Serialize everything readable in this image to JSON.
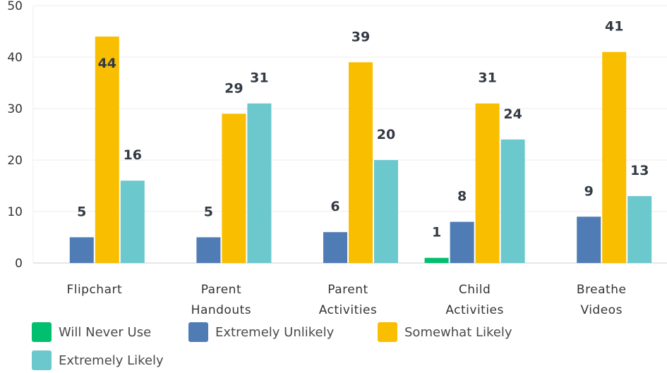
{
  "chart_data": {
    "type": "bar",
    "categories": [
      [
        "Flipchart"
      ],
      [
        "Parent",
        "Handouts"
      ],
      [
        "Parent",
        "Activities"
      ],
      [
        "Child",
        "Activities"
      ],
      [
        "Breathe",
        "Videos"
      ]
    ],
    "series": [
      {
        "name": "Will Never Use",
        "color": "#00bf6f",
        "values": [
          0,
          0,
          0,
          1,
          0
        ]
      },
      {
        "name": "Extremely Unlikely",
        "color": "#507cb6",
        "values": [
          5,
          5,
          6,
          8,
          9
        ]
      },
      {
        "name": "Somewhat Likely",
        "color": "#f9be00",
        "values": [
          44,
          29,
          39,
          31,
          41
        ]
      },
      {
        "name": "Extremely Likely",
        "color": "#6bc8cd",
        "values": [
          16,
          31,
          20,
          24,
          13
        ]
      }
    ],
    "ylim": [
      0,
      50
    ],
    "yticks": [
      0,
      10,
      20,
      30,
      40,
      50
    ],
    "grid": true,
    "legend": "bottom",
    "title": "",
    "xlabel": "",
    "ylabel": ""
  }
}
